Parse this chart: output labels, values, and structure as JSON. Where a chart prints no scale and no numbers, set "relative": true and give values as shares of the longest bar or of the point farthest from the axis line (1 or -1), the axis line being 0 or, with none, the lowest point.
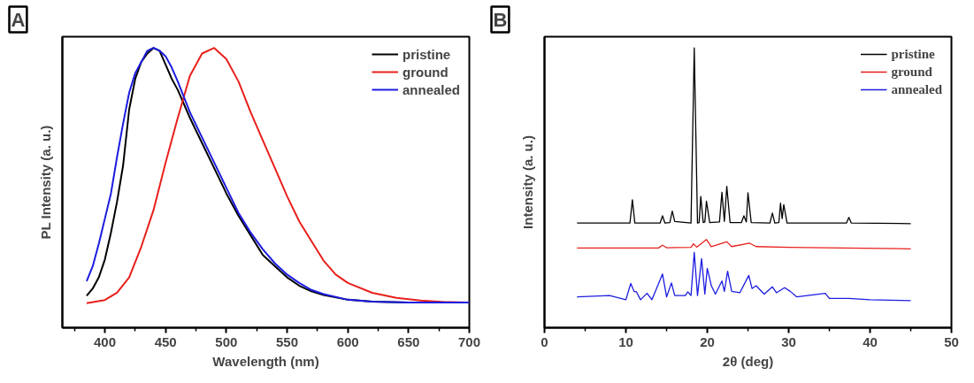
{
  "chart_data": [
    {
      "type": "line",
      "title": "A",
      "xlabel": "Wavelength (nm)",
      "ylabel": "PL Intensity (a. u.)",
      "relative": true,
      "legend": "top right",
      "grid": false,
      "xlim": [
        365,
        700
      ],
      "xticks": [
        {
          "value": 375,
          "label": null
        },
        400,
        {
          "value": 425,
          "label": null
        },
        450,
        {
          "value": 475,
          "label": null
        },
        500,
        {
          "value": 525,
          "label": null
        },
        550,
        {
          "value": 575,
          "label": null
        },
        600,
        {
          "value": 625,
          "label": null
        },
        650,
        {
          "value": 675,
          "label": null
        },
        700
      ],
      "series": [
        {
          "name": "pristine",
          "color": "#000000",
          "x": [
            385,
            390,
            395,
            400,
            405,
            410,
            415,
            420,
            425,
            430,
            435,
            440,
            445,
            450,
            455,
            460,
            470,
            480,
            490,
            500,
            510,
            520,
            530,
            540,
            550,
            560,
            570,
            580,
            600,
            620,
            650,
            700
          ],
          "values": [
            0.114,
            0.14,
            0.18,
            0.244,
            0.34,
            0.45,
            0.58,
            0.78,
            0.89,
            0.95,
            0.98,
            1.0,
            0.99,
            0.94,
            0.89,
            0.85,
            0.75,
            0.66,
            0.57,
            0.48,
            0.4,
            0.33,
            0.26,
            0.22,
            0.18,
            0.15,
            0.13,
            0.117,
            0.1,
            0.093,
            0.09,
            0.09
          ]
        },
        {
          "name": "ground",
          "color": "#e8201c",
          "x": [
            385,
            400,
            410,
            420,
            430,
            440,
            450,
            460,
            470,
            480,
            490,
            500,
            510,
            520,
            530,
            540,
            550,
            560,
            570,
            580,
            590,
            600,
            620,
            640,
            660,
            680,
            700
          ],
          "values": [
            0.088,
            0.099,
            0.125,
            0.18,
            0.29,
            0.42,
            0.59,
            0.75,
            0.9,
            0.98,
            1.0,
            0.96,
            0.88,
            0.77,
            0.67,
            0.57,
            0.47,
            0.38,
            0.31,
            0.24,
            0.19,
            0.16,
            0.125,
            0.107,
            0.097,
            0.092,
            0.09
          ]
        },
        {
          "name": "annealed",
          "color": "#1c1ce0",
          "x": [
            385,
            390,
            395,
            400,
            405,
            410,
            415,
            420,
            425,
            430,
            435,
            440,
            445,
            450,
            455,
            460,
            470,
            480,
            490,
            500,
            510,
            520,
            530,
            540,
            550,
            560,
            570,
            580,
            600,
            620,
            650,
            700
          ],
          "values": [
            0.166,
            0.22,
            0.3,
            0.39,
            0.48,
            0.61,
            0.73,
            0.84,
            0.91,
            0.95,
            0.99,
            1.0,
            0.99,
            0.97,
            0.93,
            0.88,
            0.77,
            0.68,
            0.59,
            0.5,
            0.41,
            0.34,
            0.28,
            0.23,
            0.19,
            0.16,
            0.135,
            0.12,
            0.1,
            0.093,
            0.09,
            0.09
          ]
        }
      ]
    },
    {
      "type": "line",
      "title": "B",
      "xlabel": "2θ (deg)",
      "ylabel": "Intensity (a. u.)",
      "relative": true,
      "legend": "top right",
      "grid": false,
      "xlim": [
        0,
        50
      ],
      "xticks": [
        0,
        {
          "value": 5,
          "label": null
        },
        10,
        {
          "value": 15,
          "label": null
        },
        20,
        {
          "value": 25,
          "label": null
        },
        30,
        {
          "value": 35,
          "label": null
        },
        40,
        {
          "value": 45,
          "label": null
        },
        50
      ],
      "series": [
        {
          "name": "pristine",
          "color": "#000000",
          "x": [
            4,
            10.5,
            10.8,
            11.1,
            14.2,
            14.5,
            14.8,
            15.4,
            15.7,
            16.0,
            18.0,
            18.4,
            18.8,
            19.0,
            19.2,
            19.5,
            19.7,
            19.9,
            20.3,
            21.5,
            21.8,
            22.1,
            22.4,
            22.8,
            24.2,
            24.5,
            24.8,
            25.0,
            25.4,
            27.7,
            28.0,
            28.3,
            28.8,
            29.0,
            29.2,
            29.4,
            29.8,
            37.1,
            37.4,
            37.7,
            45
          ],
          "values": [
            0.374,
            0.374,
            0.457,
            0.374,
            0.374,
            0.4,
            0.374,
            0.376,
            0.417,
            0.38,
            0.374,
            1.0,
            0.374,
            0.376,
            0.469,
            0.376,
            0.378,
            0.452,
            0.376,
            0.378,
            0.484,
            0.38,
            0.505,
            0.376,
            0.376,
            0.4,
            0.378,
            0.482,
            0.376,
            0.374,
            0.41,
            0.374,
            0.376,
            0.445,
            0.39,
            0.44,
            0.374,
            0.374,
            0.394,
            0.374,
            0.372
          ]
        },
        {
          "name": "ground",
          "color": "#e8201c",
          "x": [
            4,
            14.0,
            14.5,
            15.0,
            18.0,
            18.3,
            18.7,
            19.9,
            20.5,
            22.4,
            23.0,
            25.2,
            26.0,
            30,
            45
          ],
          "values": [
            0.285,
            0.285,
            0.295,
            0.286,
            0.287,
            0.3,
            0.288,
            0.315,
            0.29,
            0.307,
            0.29,
            0.302,
            0.29,
            0.287,
            0.282
          ]
        },
        {
          "name": "annealed",
          "color": "#1c1ce0",
          "x": [
            4,
            8,
            10,
            10.6,
            11,
            11.3,
            11.8,
            12.6,
            13.2,
            14.5,
            15,
            15.6,
            16,
            17.3,
            17.6,
            18,
            18.4,
            18.8,
            19.3,
            19.7,
            20,
            20.5,
            21,
            21.8,
            22.1,
            22.5,
            23,
            24,
            25.1,
            25.5,
            26,
            27,
            28,
            28.5,
            29.5,
            30.2,
            31,
            34.5,
            35,
            37.4,
            40,
            45
          ],
          "values": [
            0.11,
            0.115,
            0.1,
            0.158,
            0.13,
            0.128,
            0.1,
            0.123,
            0.1,
            0.192,
            0.11,
            0.16,
            0.115,
            0.115,
            0.128,
            0.115,
            0.269,
            0.115,
            0.247,
            0.12,
            0.212,
            0.15,
            0.12,
            0.167,
            0.13,
            0.202,
            0.13,
            0.125,
            0.187,
            0.14,
            0.15,
            0.12,
            0.146,
            0.125,
            0.143,
            0.13,
            0.11,
            0.123,
            0.105,
            0.105,
            0.1,
            0.097
          ]
        }
      ]
    }
  ]
}
